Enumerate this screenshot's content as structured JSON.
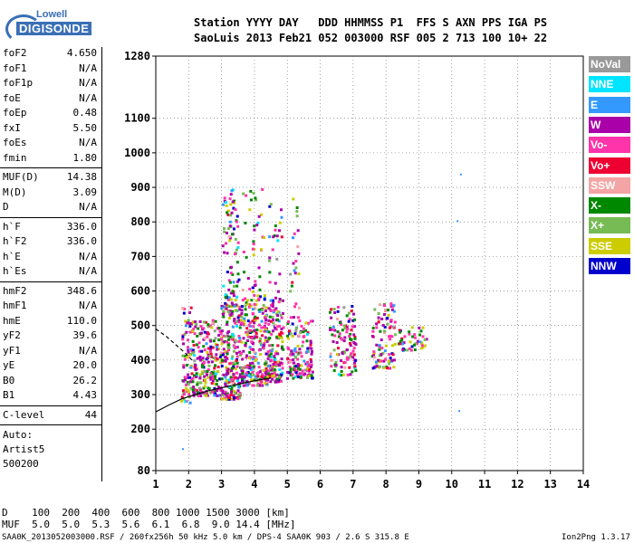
{
  "logo": {
    "top": "Lowell",
    "bottom": "DIGISONDE"
  },
  "header": {
    "line1": "Station YYYY DAY   DDD HHMMSS P1  FFS S AXN PPS IGA PS",
    "line2": "SaoLuis 2013 Feb21 052 003000 RSF 005 2 713 100 10+ 22"
  },
  "params": [
    {
      "label": "foF2",
      "value": "4.650"
    },
    {
      "label": "foF1",
      "value": "N/A"
    },
    {
      "label": "foF1p",
      "value": "N/A"
    },
    {
      "label": "foE",
      "value": "N/A"
    },
    {
      "label": "foEp",
      "value": "0.48"
    },
    {
      "label": "fxI",
      "value": "5.50"
    },
    {
      "label": "foEs",
      "value": "N/A"
    },
    {
      "label": "fmin",
      "value": "1.80"
    },
    {
      "label": "MUF(D)",
      "value": "14.38"
    },
    {
      "label": "M(D)",
      "value": "3.09"
    },
    {
      "label": "D",
      "value": "N/A"
    },
    {
      "label": "h`F",
      "value": "336.0"
    },
    {
      "label": "h`F2",
      "value": "336.0"
    },
    {
      "label": "h`E",
      "value": "N/A"
    },
    {
      "label": "h`Es",
      "value": "N/A"
    },
    {
      "label": "hmF2",
      "value": "348.6"
    },
    {
      "label": "hmF1",
      "value": "N/A"
    },
    {
      "label": "hmE",
      "value": "110.0"
    },
    {
      "label": "yF2",
      "value": "39.6"
    },
    {
      "label": "yF1",
      "value": "N/A"
    },
    {
      "label": "yE",
      "value": "20.0"
    },
    {
      "label": "B0",
      "value": "26.2"
    },
    {
      "label": "B1",
      "value": "4.43"
    },
    {
      "label": "C-level",
      "value": "44"
    }
  ],
  "auto_block": [
    "Auto:",
    "Artist5",
    "500200"
  ],
  "legend": [
    {
      "label": "NoVal",
      "color": "#999999"
    },
    {
      "label": "NNE",
      "color": "#00e5ff"
    },
    {
      "label": "E",
      "color": "#3399ff"
    },
    {
      "label": "W",
      "color": "#aa00aa"
    },
    {
      "label": "Vo-",
      "color": "#ff33aa"
    },
    {
      "label": "Vo+",
      "color": "#ee0033"
    },
    {
      "label": "SSW",
      "color": "#f4a4a4"
    },
    {
      "label": "X-",
      "color": "#008800"
    },
    {
      "label": "X+",
      "color": "#77bb55"
    },
    {
      "label": "SSE",
      "color": "#cccc00"
    },
    {
      "label": "NNW",
      "color": "#0000cc"
    }
  ],
  "muf_table": {
    "d_line": "D    100  200  400  600  800 1000 1500 3000 [km]",
    "muf_line": "MUF  5.0  5.0  5.3  5.6  6.1  6.8  9.0 14.4 [MHz]"
  },
  "footer": "SAA0K_2013052003000.RSF / 260fx256h 50 kHz 5.0 km / DPS-4 SAA0K 903 / 2.6 S 315.8 E",
  "version": "Ion2Png 1.3.17",
  "chart_data": {
    "type": "scatter",
    "xlim": [
      1,
      14
    ],
    "ylim": [
      80,
      1280
    ],
    "x_ticks": [
      1,
      2,
      3,
      4,
      5,
      6,
      7,
      8,
      9,
      10,
      11,
      12,
      13,
      14
    ],
    "y_ticks": [
      80,
      200,
      300,
      400,
      500,
      600,
      700,
      800,
      900,
      1000,
      1100,
      1280
    ],
    "grid": true,
    "legend_position": "right",
    "clusters": [
      {
        "x": [
          1.75,
          2.05
        ],
        "y": [
          280,
          560
        ],
        "n": 70
      },
      {
        "x": [
          2.05,
          2.95
        ],
        "y": [
          300,
          520
        ],
        "n": 230
      },
      {
        "x": [
          2.95,
          3.55
        ],
        "y": [
          290,
          560
        ],
        "n": 230
      },
      {
        "x": [
          3.0,
          3.5
        ],
        "y": [
          560,
          900
        ],
        "n": 90
      },
      {
        "x": [
          3.55,
          4.35
        ],
        "y": [
          330,
          560
        ],
        "n": 230
      },
      {
        "x": [
          3.6,
          4.3
        ],
        "y": [
          560,
          900
        ],
        "n": 60
      },
      {
        "x": [
          4.35,
          4.85
        ],
        "y": [
          340,
          580
        ],
        "n": 150
      },
      {
        "x": [
          4.4,
          4.8
        ],
        "y": [
          580,
          880
        ],
        "n": 25
      },
      {
        "x": [
          4.95,
          5.75
        ],
        "y": [
          350,
          520
        ],
        "n": 140
      },
      {
        "x": [
          5.05,
          5.35
        ],
        "y": [
          520,
          870
        ],
        "n": 25
      },
      {
        "x": [
          6.25,
          7.05
        ],
        "y": [
          360,
          560
        ],
        "n": 110
      },
      {
        "x": [
          7.55,
          8.25
        ],
        "y": [
          380,
          570
        ],
        "n": 100
      },
      {
        "x": [
          8.35,
          9.2
        ],
        "y": [
          430,
          500
        ],
        "n": 45
      }
    ],
    "isolated_points": [
      {
        "x": 1.8,
        "y": 145
      },
      {
        "x": 10.25,
        "y": 940
      },
      {
        "x": 10.2,
        "y": 255
      },
      {
        "x": 10.15,
        "y": 805
      }
    ],
    "profile_curve": [
      [
        1.0,
        250
      ],
      [
        1.4,
        270
      ],
      [
        1.8,
        288
      ],
      [
        2.2,
        300
      ],
      [
        2.6,
        311
      ],
      [
        3.0,
        320
      ],
      [
        3.5,
        330
      ],
      [
        4.0,
        340
      ],
      [
        4.5,
        348
      ]
    ],
    "profile_dashed": [
      [
        1.0,
        490
      ],
      [
        1.3,
        470
      ],
      [
        1.6,
        445
      ],
      [
        1.9,
        420
      ],
      [
        2.1,
        400
      ]
    ]
  }
}
